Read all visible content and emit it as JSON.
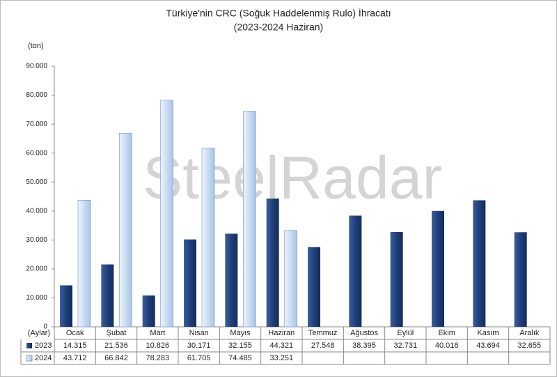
{
  "chart_data": {
    "type": "bar",
    "title": "Türkiye'nin CRC (Soğuk Haddelenmiş Rulo) İhracatı",
    "subtitle": "(2023-2024 Haziran)",
    "y_label": "(ton)",
    "x_label": "(Aylar)",
    "watermark": "SteelRadar",
    "categories": [
      "Ocak",
      "Şubat",
      "Mart",
      "Nisan",
      "Mayıs",
      "Haziran",
      "Temmuz",
      "Ağustos",
      "Eylül",
      "Ekim",
      "Kasım",
      "Aralık"
    ],
    "series": [
      {
        "name": "2023",
        "color": "#1f3f7a",
        "values": [
          14315,
          21536,
          10826,
          30171,
          32155,
          44321,
          27548,
          38395,
          32731,
          40018,
          43694,
          32655
        ],
        "value_labels": [
          "14.315",
          "21.536",
          "10.826",
          "30.171",
          "32.155",
          "44.321",
          "27.548",
          "38.395",
          "32.731",
          "40.018",
          "43.694",
          "32.655"
        ]
      },
      {
        "name": "2024",
        "color": "#c9dcf3",
        "values": [
          43712,
          66842,
          78283,
          61705,
          74485,
          33251,
          null,
          null,
          null,
          null,
          null,
          null
        ],
        "value_labels": [
          "43.712",
          "66.842",
          "78.283",
          "61.705",
          "74.485",
          "33.251",
          null,
          null,
          null,
          null,
          null,
          null
        ]
      }
    ],
    "ylim": [
      0,
      90000
    ],
    "yticks": [
      0,
      {
        "value": 10000,
        "label": "10.000"
      },
      {
        "value": 20000,
        "label": "20.000"
      },
      {
        "value": 30000,
        "label": "30.000"
      },
      {
        "value": 40000,
        "label": "40.000"
      },
      {
        "value": 50000,
        "label": "50.000"
      },
      {
        "value": 60000,
        "label": "60.000"
      },
      {
        "value": 70000,
        "label": "70.000"
      },
      {
        "value": 80000,
        "label": "80.000"
      },
      {
        "value": 90000,
        "label": "90.000"
      }
    ],
    "grid": false
  }
}
